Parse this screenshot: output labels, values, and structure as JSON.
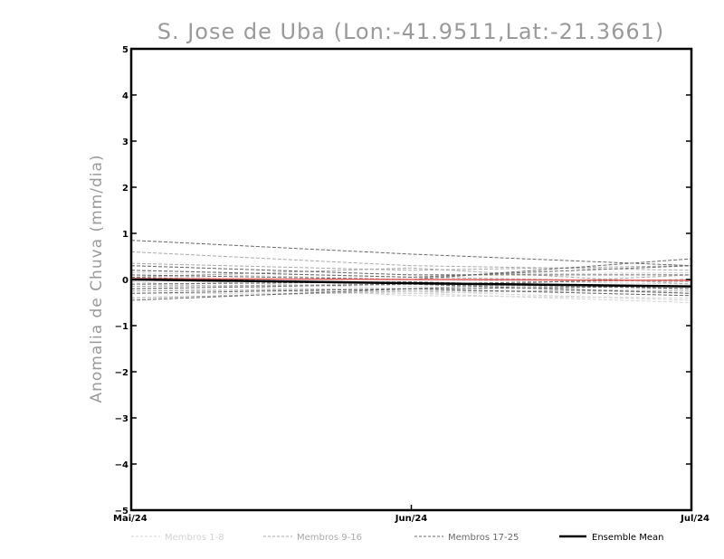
{
  "chart_data": {
    "type": "line",
    "title": "S. Jose de Uba (Lon:-41.9511,Lat:-21.3661)",
    "ylabel": "Anomalia de Chuva (mm/dia)",
    "xlabel": "",
    "categories": [
      "Mai/24",
      "Jun/24",
      "Jul/24"
    ],
    "y_ticks": [
      5,
      4,
      3,
      2,
      1,
      0,
      -1,
      -2,
      -3,
      -4,
      -5
    ],
    "ylim": [
      -5,
      5
    ],
    "grid": false,
    "legend_position": "bottom",
    "legend": [
      {
        "label": "Membros 1-8",
        "color": "#d3d3d3",
        "style": "dashed"
      },
      {
        "label": "Membros 9-16",
        "color": "#a9a9a9",
        "style": "dashed"
      },
      {
        "label": "Membros 17-25",
        "color": "#696969",
        "style": "dashed"
      },
      {
        "label": "Ensemble Mean",
        "color": "#000000",
        "style": "solid"
      }
    ],
    "series_groups": [
      {
        "group": "Membros 1-8",
        "color": "#d3d3d3",
        "members": [
          [
            -0.1,
            -0.25,
            -0.45
          ],
          [
            0.1,
            -0.15,
            -0.3
          ],
          [
            -0.3,
            -0.3,
            -0.5
          ],
          [
            0.3,
            0.1,
            0.15
          ],
          [
            0.0,
            -0.2,
            -0.35
          ],
          [
            -0.2,
            -0.3,
            -0.2
          ],
          [
            0.15,
            0.0,
            -0.1
          ],
          [
            -0.05,
            -0.35,
            -0.4
          ]
        ]
      },
      {
        "group": "Membros 9-16",
        "color": "#a9a9a9",
        "members": [
          [
            0.6,
            0.3,
            0.2
          ],
          [
            0.05,
            0.25,
            -0.1
          ],
          [
            -0.4,
            -0.25,
            -0.25
          ],
          [
            0.35,
            0.2,
            0.3
          ],
          [
            -0.15,
            -0.1,
            -0.3
          ],
          [
            0.2,
            0.05,
            -0.05
          ],
          [
            -0.25,
            -0.2,
            0.1
          ],
          [
            0.0,
            -0.1,
            -0.2
          ]
        ]
      },
      {
        "group": "Membros 17-25",
        "color": "#696969",
        "members": [
          [
            0.85,
            0.55,
            0.3
          ],
          [
            -0.45,
            -0.2,
            -0.15
          ],
          [
            0.1,
            0.0,
            0.45
          ],
          [
            -0.2,
            -0.1,
            -0.3
          ],
          [
            0.3,
            0.1,
            0.1
          ],
          [
            -0.1,
            -0.05,
            -0.2
          ],
          [
            0.2,
            0.05,
            0.3
          ],
          [
            -0.3,
            -0.2,
            -0.35
          ],
          [
            0.05,
            -0.1,
            0.0
          ]
        ]
      }
    ],
    "observed": {
      "color": "#e06060",
      "values": [
        0.02,
        0.0,
        -0.02
      ]
    },
    "ensemble_mean": {
      "color": "#000000",
      "values": [
        0.0,
        -0.08,
        -0.15
      ]
    }
  }
}
